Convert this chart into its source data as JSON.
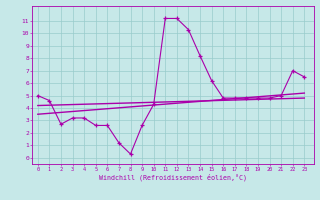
{
  "xlabel": "Windchill (Refroidissement éolien,°C)",
  "bg_color": "#c6e8e8",
  "grid_color": "#99cccc",
  "line_color": "#aa00aa",
  "x_ticks": [
    0,
    1,
    2,
    3,
    4,
    5,
    6,
    7,
    8,
    9,
    10,
    11,
    12,
    13,
    14,
    15,
    16,
    17,
    18,
    19,
    20,
    21,
    22,
    23
  ],
  "y_ticks": [
    0,
    1,
    2,
    3,
    4,
    5,
    6,
    7,
    8,
    9,
    10,
    11
  ],
  "ylim": [
    -0.5,
    12.2
  ],
  "xlim": [
    -0.5,
    23.8
  ],
  "series1_x": [
    0,
    1,
    2,
    3,
    4,
    5,
    6,
    7,
    8,
    9,
    10,
    11,
    12,
    13,
    14,
    15,
    16,
    17,
    18,
    19,
    20,
    21,
    22,
    23
  ],
  "series1_y": [
    5.0,
    4.6,
    2.7,
    3.2,
    3.2,
    2.6,
    2.6,
    1.2,
    0.3,
    2.6,
    4.3,
    11.2,
    11.2,
    10.3,
    8.2,
    6.2,
    4.8,
    4.8,
    4.8,
    4.8,
    4.8,
    5.0,
    7.0,
    6.5
  ],
  "series2_x": [
    0,
    23
  ],
  "series2_y": [
    4.2,
    4.8
  ],
  "series3_x": [
    0,
    23
  ],
  "series3_y": [
    3.5,
    5.2
  ]
}
